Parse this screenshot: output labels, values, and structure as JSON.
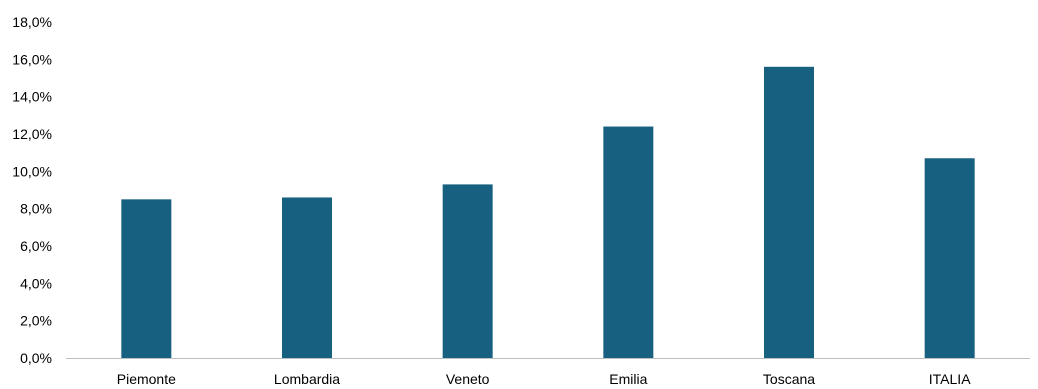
{
  "chart_data": {
    "type": "bar",
    "categories": [
      "Piemonte",
      "Lombardia",
      "Veneto",
      "Emilia",
      "Toscana",
      "ITALIA"
    ],
    "values": [
      8.5,
      8.6,
      9.3,
      12.4,
      15.6,
      10.7
    ],
    "ylim": [
      0,
      18
    ],
    "yticks": [
      0,
      2,
      4,
      6,
      8,
      10,
      12,
      14,
      16,
      18
    ],
    "ytick_labels": [
      "0,0%",
      "2,0%",
      "4,0%",
      "6,0%",
      "8,0%",
      "10,0%",
      "12,0%",
      "14,0%",
      "16,0%",
      "18,0%"
    ],
    "grid": false,
    "legend": "none",
    "colors": {
      "bar": "#17607f",
      "axis": "#bfbfbf"
    }
  }
}
